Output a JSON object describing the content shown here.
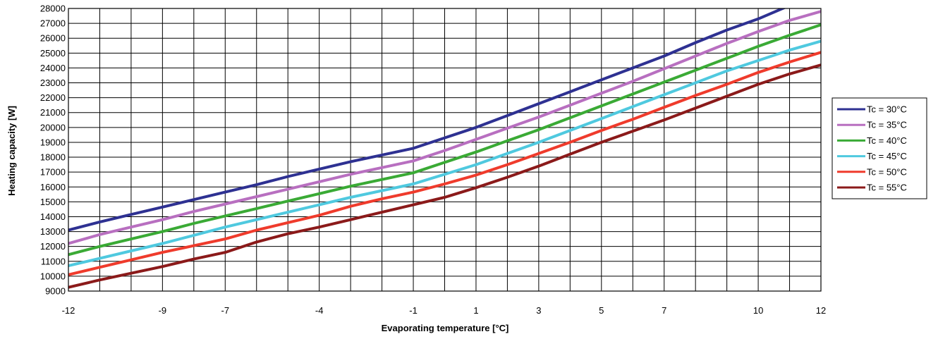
{
  "chart_data": {
    "type": "line",
    "xlabel": "Evaporating temperature [°C]",
    "ylabel": "Heating capacity [W]",
    "ylim": [
      9000,
      28000
    ],
    "ytick_step": 1000,
    "categories": [
      "-12",
      "-11",
      "-10",
      "-9",
      "-8",
      "-7",
      "-6",
      "-5",
      "-4",
      "-3",
      "-2",
      "-1",
      "0",
      "1",
      "2",
      "3",
      "4",
      "5",
      "6",
      "7",
      "8",
      "9",
      "10",
      "11",
      "12"
    ],
    "xtick_labels": [
      "-12",
      "",
      "",
      "-9",
      "",
      "-7",
      "",
      "",
      "-4",
      "",
      "",
      "-1",
      "",
      "1",
      "",
      "3",
      "",
      "5",
      "",
      "7",
      "",
      "",
      "10",
      "",
      "12"
    ],
    "grid": true,
    "legend_position": "right",
    "series": [
      {
        "name": "Tc = 30°C",
        "color": "#2e3192",
        "values": [
          13100,
          13650,
          14150,
          14650,
          15150,
          15650,
          16150,
          16700,
          17200,
          17700,
          18150,
          18600,
          19300,
          20000,
          20800,
          21600,
          22400,
          23200,
          24000,
          24800,
          25700,
          26550,
          27300,
          28200,
          28900
        ]
      },
      {
        "name": "Tc = 35°C",
        "color": "#b86fc0",
        "values": [
          12200,
          12800,
          13300,
          13800,
          14350,
          14850,
          15350,
          15850,
          16350,
          16850,
          17300,
          17750,
          18450,
          19200,
          19950,
          20700,
          21500,
          22300,
          23100,
          23950,
          24800,
          25650,
          26450,
          27200,
          27800
        ]
      },
      {
        "name": "Tc = 40°C",
        "color": "#3aaa35",
        "values": [
          11450,
          12000,
          12500,
          13000,
          13550,
          14050,
          14550,
          15050,
          15550,
          16050,
          16500,
          16950,
          17650,
          18350,
          19100,
          19850,
          20650,
          21450,
          22250,
          23050,
          23850,
          24650,
          25450,
          26200,
          26900
        ]
      },
      {
        "name": "Tc = 45°C",
        "color": "#4fc9df",
        "values": [
          10700,
          11200,
          11700,
          12200,
          12750,
          13300,
          13800,
          14300,
          14800,
          15300,
          15750,
          16200,
          16850,
          17500,
          18250,
          19000,
          19800,
          20600,
          21400,
          22200,
          23000,
          23800,
          24500,
          25200,
          25800
        ]
      },
      {
        "name": "Tc = 50°C",
        "color": "#ef3b2c",
        "values": [
          10100,
          10600,
          11100,
          11600,
          12050,
          12500,
          13100,
          13600,
          14100,
          14700,
          15200,
          15650,
          16200,
          16800,
          17500,
          18250,
          19000,
          19800,
          20550,
          21350,
          22150,
          22900,
          23700,
          24400,
          25050
        ]
      },
      {
        "name": "Tc = 55°C",
        "color": "#8b1a1a",
        "values": [
          9250,
          9750,
          10200,
          10650,
          11150,
          11600,
          12300,
          12850,
          13300,
          13800,
          14300,
          14800,
          15300,
          15950,
          16650,
          17400,
          18200,
          19000,
          19750,
          20500,
          21300,
          22100,
          22900,
          23600,
          24200
        ]
      }
    ]
  }
}
